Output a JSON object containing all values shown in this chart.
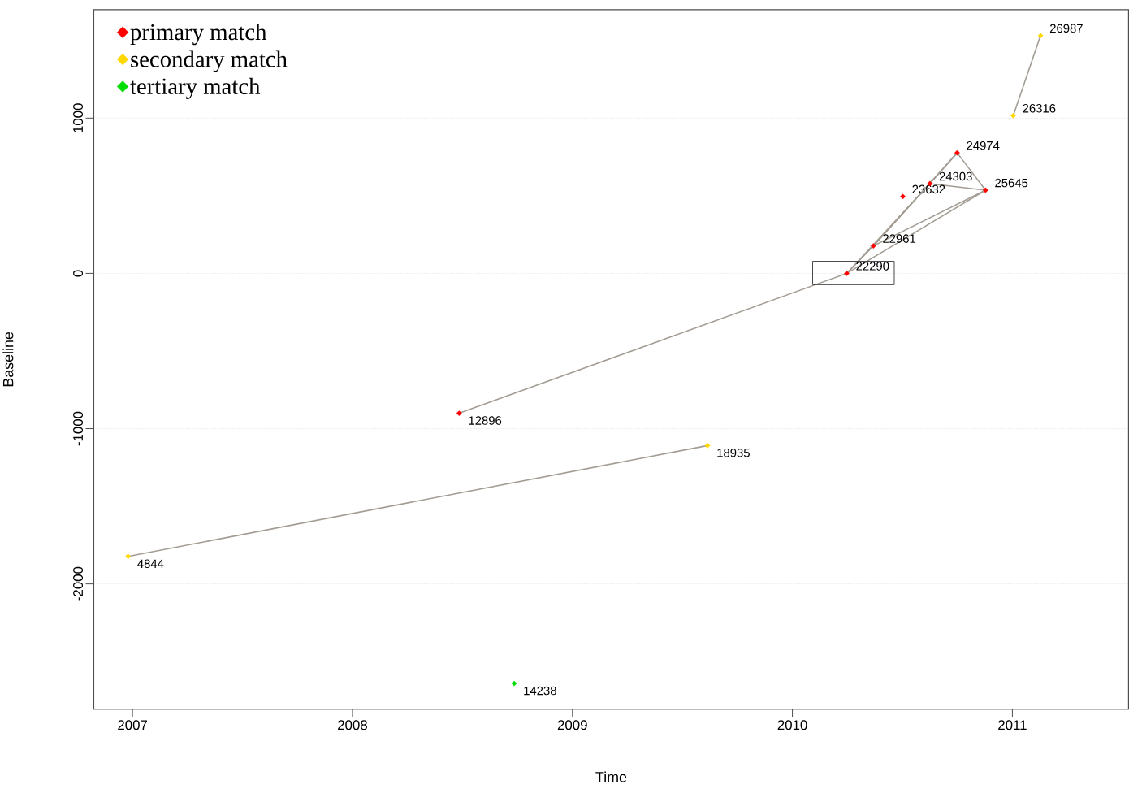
{
  "chart_data": {
    "type": "scatter",
    "xlabel": "Time",
    "ylabel": "Baseline",
    "xlim": [
      2006.824,
      2011.528
    ],
    "ylim": [
      -2807,
      1698
    ],
    "xticks": [
      2007,
      2008,
      2009,
      2010,
      2011
    ],
    "yticks": [
      -2000,
      -1000,
      0,
      1000
    ],
    "grid": "y",
    "legend": "top left",
    "marker": "diamond",
    "series": [
      {
        "type": "line",
        "marker": "none",
        "color": "#a39c93",
        "x": [
          2008.485,
          2010.247
        ],
        "values": [
          -901,
          0
        ]
      },
      {
        "type": "line",
        "marker": "none",
        "color": "#a39c93",
        "x": [
          2006.98,
          2009.614
        ],
        "values": [
          -1823,
          -1109
        ]
      },
      {
        "type": "line",
        "marker": "none",
        "color": "#a39c93",
        "x": [
          2010.247,
          2010.368
        ],
        "values": [
          0,
          177
        ]
      },
      {
        "type": "line",
        "marker": "none",
        "color": "#a39c93",
        "x": [
          2010.247,
          2010.625
        ],
        "values": [
          0,
          578
        ]
      },
      {
        "type": "line",
        "marker": "none",
        "color": "#a39c93",
        "x": [
          2010.368,
          2010.625
        ],
        "values": [
          177,
          578
        ]
      },
      {
        "type": "line",
        "marker": "none",
        "color": "#a39c93",
        "x": [
          2010.247,
          2010.878
        ],
        "values": [
          0,
          536
        ]
      },
      {
        "type": "line",
        "marker": "none",
        "color": "#a39c93",
        "x": [
          2010.368,
          2010.878
        ],
        "values": [
          177,
          536
        ]
      },
      {
        "type": "line",
        "marker": "none",
        "color": "#a39c93",
        "x": [
          2010.368,
          2010.749
        ],
        "values": [
          177,
          776
        ]
      },
      {
        "type": "line",
        "marker": "none",
        "color": "#a39c93",
        "x": [
          2010.625,
          2010.749
        ],
        "values": [
          578,
          776
        ]
      },
      {
        "type": "line",
        "marker": "none",
        "color": "#a39c93",
        "x": [
          2010.625,
          2010.878
        ],
        "values": [
          578,
          536
        ]
      },
      {
        "type": "line",
        "marker": "none",
        "color": "#a39c93",
        "x": [
          2010.749,
          2010.878
        ],
        "values": [
          776,
          536
        ]
      },
      {
        "type": "line",
        "marker": "none",
        "color": "#a39c93",
        "x": [
          2011.004,
          2011.128
        ],
        "values": [
          1016,
          1531
        ]
      },
      {
        "name": "primary match",
        "color": "#ff0000",
        "x": [
          2008.485,
          2010.247,
          2010.368,
          2010.502,
          2010.625,
          2010.749,
          2010.878
        ],
        "values": [
          -901,
          0,
          177,
          495,
          578,
          776,
          536
        ]
      },
      {
        "name": "secondary match",
        "color": "#ffd700",
        "x": [
          2006.98,
          2009.614,
          2011.004,
          2011.128
        ],
        "values": [
          -1823,
          -1109,
          1016,
          1531
        ]
      },
      {
        "name": "tertiary  match",
        "color": "#00dd00",
        "x": [
          2008.735
        ],
        "values": [
          -2641
        ]
      }
    ],
    "annotations": [
      {
        "text": "12896",
        "x": 2008.485,
        "y": -901
      },
      {
        "text": "22290",
        "x": 2010.247,
        "y": 0
      },
      {
        "text": "22961",
        "x": 2010.368,
        "y": 177
      },
      {
        "text": "23632",
        "x": 2010.502,
        "y": 495
      },
      {
        "text": "24303",
        "x": 2010.625,
        "y": 578
      },
      {
        "text": "24974",
        "x": 2010.749,
        "y": 776
      },
      {
        "text": "25645",
        "x": 2010.878,
        "y": 536
      },
      {
        "text": "4844",
        "x": 2006.98,
        "y": -1823
      },
      {
        "text": "18935",
        "x": 2009.614,
        "y": -1109
      },
      {
        "text": "26316",
        "x": 2011.004,
        "y": 1016
      },
      {
        "text": "26987",
        "x": 2011.128,
        "y": 1531
      },
      {
        "text": "14238",
        "x": 2008.735,
        "y": -2641
      }
    ]
  }
}
